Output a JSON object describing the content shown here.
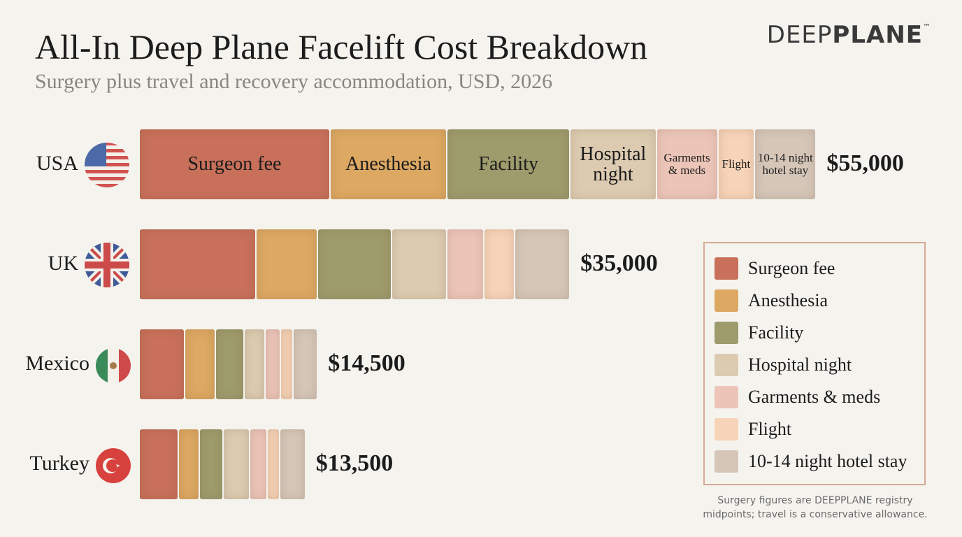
{
  "chart_data": {
    "type": "stacked-bar-horizontal",
    "title": "All-In Deep Plane Facelift Cost Breakdown",
    "subtitle": "Surgery plus travel and recovery accommodation, USD, 2026",
    "brand": {
      "light": "DEEP",
      "bold": "PLANE",
      "mark": "™"
    },
    "categories": [
      "USA",
      "UK",
      "Mexico",
      "Turkey"
    ],
    "series": [
      {
        "name": "Surgeon fee",
        "color": "#c8705a",
        "values": [
          15500,
          9500,
          3700,
          3200
        ]
      },
      {
        "name": "Anesthesia",
        "color": "#dca862",
        "values": [
          9500,
          5000,
          2500,
          1700
        ]
      },
      {
        "name": "Facility",
        "color": "#9e9b6c",
        "values": [
          10000,
          6000,
          2300,
          1900
        ]
      },
      {
        "name": "Hospital night",
        "color": "#dccbb0",
        "values": [
          7000,
          4500,
          1700,
          2200
        ]
      },
      {
        "name": "Garments & meds",
        "color": "#ecc5b8",
        "values": [
          5000,
          3000,
          1300,
          1400
        ]
      },
      {
        "name": "Flight",
        "color": "#f7d3b7",
        "values": [
          3000,
          2500,
          1000,
          1000
        ]
      },
      {
        "name": "10-14 night hotel stay",
        "color": "#d5c6b8",
        "values": [
          5000,
          4500,
          2000,
          2100
        ]
      }
    ],
    "totals": [
      55000,
      35000,
      14500,
      13500
    ],
    "total_labels": [
      "$55,000",
      "$35,000",
      "$14,500",
      "$13,500"
    ],
    "legend": "right",
    "footnote": "Surgery figures are DEEPPLANE registry midpoints; travel is a conservative allowance."
  }
}
